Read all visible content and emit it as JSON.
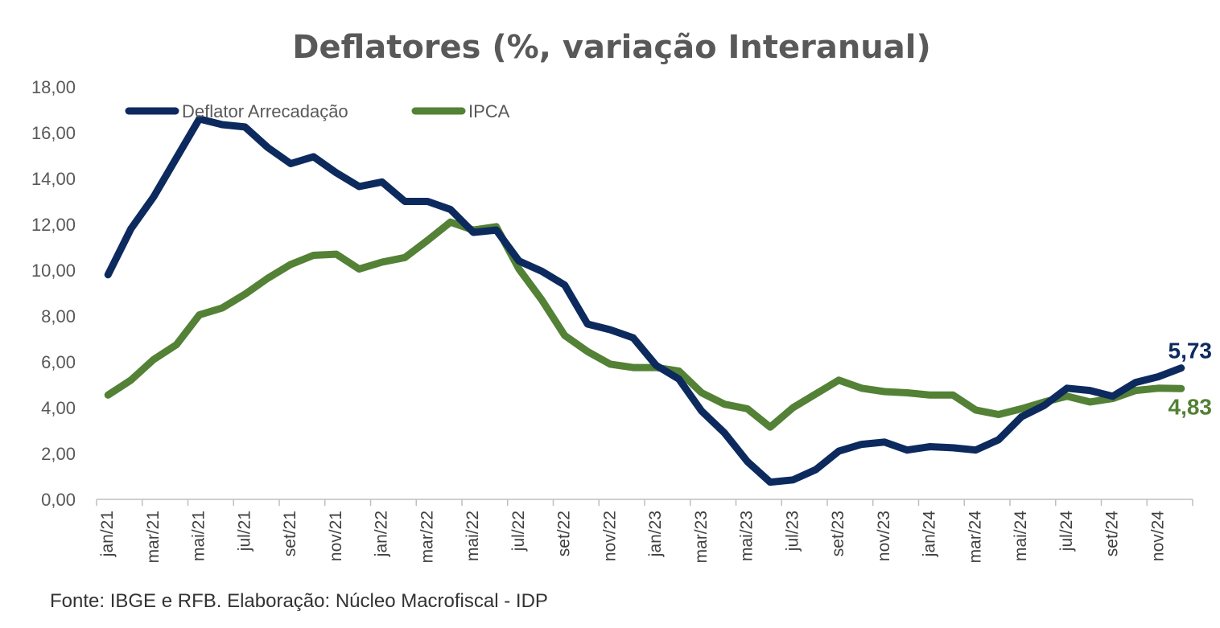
{
  "chart_data": {
    "type": "line",
    "title": "Deflatores (%, variação Interanual)",
    "xlabel": "",
    "ylabel": "",
    "ylim": [
      0,
      18
    ],
    "ytick_labels": [
      "0,00",
      "2,00",
      "4,00",
      "6,00",
      "8,00",
      "10,00",
      "12,00",
      "14,00",
      "16,00",
      "18,00"
    ],
    "legend_position": "top-left",
    "grid": false,
    "x": [
      "jan/21",
      "fev/21",
      "mar/21",
      "abr/21",
      "mai/21",
      "jun/21",
      "jul/21",
      "ago/21",
      "set/21",
      "out/21",
      "nov/21",
      "dez/21",
      "jan/22",
      "fev/22",
      "mar/22",
      "abr/22",
      "mai/22",
      "jun/22",
      "jul/22",
      "ago/22",
      "set/22",
      "out/22",
      "nov/22",
      "dez/22",
      "jan/23",
      "fev/23",
      "mar/23",
      "abr/23",
      "mai/23",
      "jun/23",
      "jul/23",
      "ago/23",
      "set/23",
      "out/23",
      "nov/23",
      "dez/23",
      "jan/24",
      "fev/24",
      "mar/24",
      "abr/24",
      "mai/24",
      "jun/24",
      "jul/24",
      "ago/24",
      "set/24",
      "out/24",
      "nov/24",
      "dez/24"
    ],
    "x_tick_labels": [
      "jan/21",
      "mar/21",
      "mai/21",
      "jul/21",
      "set/21",
      "nov/21",
      "jan/22",
      "mar/22",
      "mai/22",
      "jul/22",
      "set/22",
      "nov/22",
      "jan/23",
      "mar/23",
      "mai/23",
      "jul/23",
      "set/23",
      "nov/23",
      "jan/24",
      "mar/24",
      "mai/24",
      "jul/24",
      "set/24",
      "nov/24"
    ],
    "series": [
      {
        "name": "Deflator Arrecadação",
        "color": "#0d2a5e",
        "end_label": "5,73",
        "values": [
          9.8,
          11.8,
          13.2,
          14.9,
          16.6,
          16.35,
          16.25,
          15.35,
          14.65,
          14.95,
          14.25,
          13.65,
          13.85,
          13.0,
          13.0,
          12.65,
          11.65,
          11.75,
          10.4,
          9.95,
          9.35,
          7.65,
          7.4,
          7.05,
          5.85,
          5.25,
          3.85,
          2.9,
          1.65,
          0.75,
          0.85,
          1.3,
          2.1,
          2.4,
          2.5,
          2.15,
          2.3,
          2.25,
          2.15,
          2.6,
          3.6,
          4.1,
          4.85,
          4.75,
          4.5,
          5.1,
          5.35,
          5.73
        ]
      },
      {
        "name": "IPCA",
        "color": "#538135",
        "end_label": "4,83",
        "values": [
          4.55,
          5.2,
          6.1,
          6.75,
          8.05,
          8.35,
          8.95,
          9.65,
          10.25,
          10.65,
          10.7,
          10.05,
          10.35,
          10.55,
          11.3,
          12.1,
          11.75,
          11.9,
          10.05,
          8.7,
          7.15,
          6.45,
          5.9,
          5.75,
          5.75,
          5.6,
          4.65,
          4.15,
          3.95,
          3.15,
          4.0,
          4.6,
          5.2,
          4.85,
          4.7,
          4.65,
          4.55,
          4.55,
          3.9,
          3.7,
          3.95,
          4.25,
          4.5,
          4.25,
          4.4,
          4.75,
          4.85,
          4.83
        ]
      }
    ]
  },
  "source_text": "Fonte: IBGE e RFB.  Elaboração: Núcleo Macrofiscal - IDP"
}
